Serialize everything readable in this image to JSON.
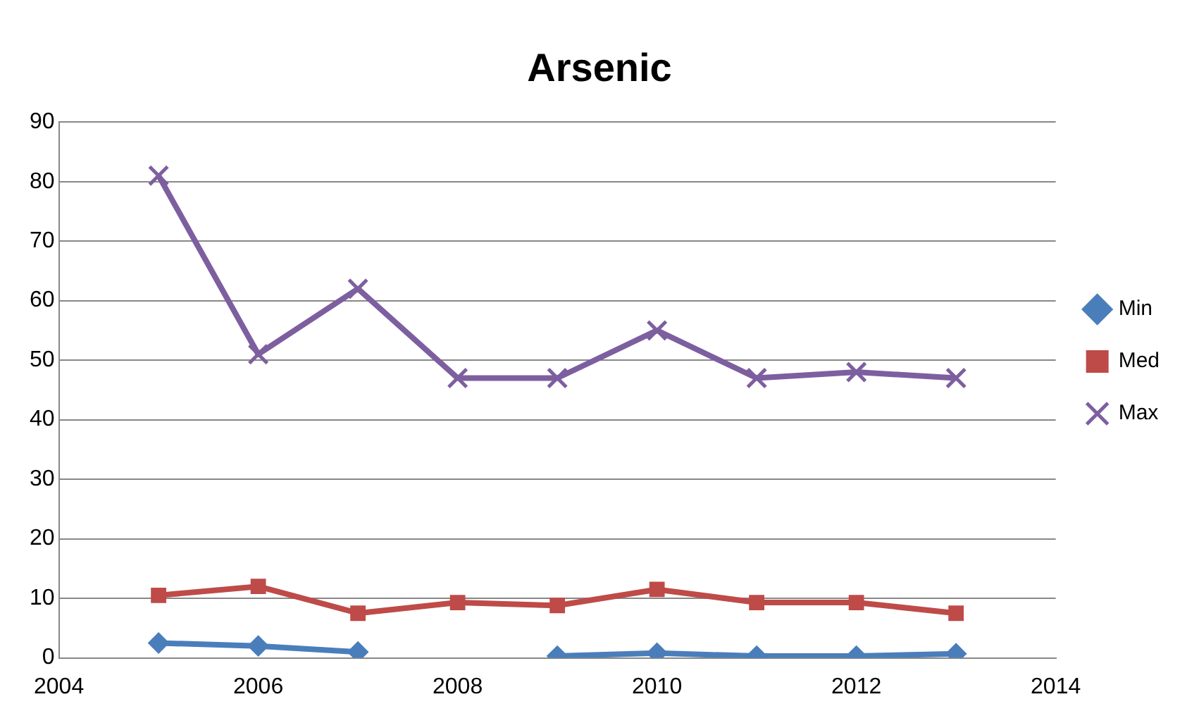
{
  "chart_data": {
    "type": "line",
    "title": "Arsenic",
    "x": [
      2005,
      2006,
      2007,
      2008,
      2009,
      2010,
      2011,
      2012,
      2013
    ],
    "series": [
      {
        "name": "Min",
        "color": "#4a7ebb",
        "marker": "diamond",
        "values": [
          2.5,
          2,
          1,
          null,
          0.3,
          0.8,
          0.3,
          0.3,
          0.7
        ]
      },
      {
        "name": "Med",
        "color": "#be4b48",
        "marker": "square",
        "values": [
          10.5,
          12,
          7.5,
          9.3,
          8.8,
          11.5,
          9.3,
          9.3,
          7.5
        ]
      },
      {
        "name": "Max",
        "color": "#7d5fa0",
        "marker": "cross",
        "values": [
          81,
          51,
          62,
          47,
          47,
          55,
          47,
          48,
          47
        ]
      }
    ],
    "xlim": [
      2004,
      2014
    ],
    "xticks": [
      2004,
      2006,
      2008,
      2010,
      2012,
      2014
    ],
    "ylim": [
      0,
      90
    ],
    "yticks": [
      0,
      10,
      20,
      30,
      40,
      50,
      60,
      70,
      80,
      90
    ],
    "grid": "y",
    "legend": "right",
    "line_style": "solid"
  }
}
